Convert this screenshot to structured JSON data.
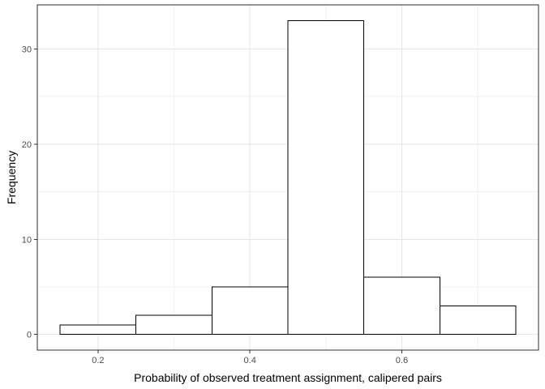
{
  "chart_data": {
    "type": "bar",
    "subtype": "histogram",
    "title": "",
    "xlabel": "Probability of observed treatment assignment, calipered pairs",
    "ylabel": "Frequency",
    "bin_edges": [
      0.15,
      0.25,
      0.35,
      0.45,
      0.55,
      0.65,
      0.75
    ],
    "counts": [
      1,
      2,
      5,
      33,
      6,
      3
    ],
    "x_axis": {
      "major_ticks": [
        0.2,
        0.4,
        0.6
      ],
      "major_tick_labels": [
        "0.2",
        "0.4",
        "0.6"
      ],
      "minor_gridlines": [
        0.3,
        0.5,
        0.7
      ]
    },
    "y_axis": {
      "major_ticks": [
        0,
        10,
        20,
        30
      ],
      "major_tick_labels": [
        "0",
        "10",
        "20",
        "30"
      ],
      "minor_gridlines": [
        5,
        15,
        25
      ]
    },
    "xlim": [
      0.12,
      0.78
    ],
    "ylim": [
      -1.65,
      34.65
    ],
    "grid": "major-and-minor",
    "legend": "none",
    "colors": {
      "figure_bg": "#ffffff",
      "panel_bg": "#ffffff",
      "panel_border": "#2e2e2e",
      "grid_major": "#e6e6e6",
      "grid_minor": "#f2f2f2",
      "bar_fill": "#ffffff",
      "bar_stroke": "#000000",
      "tick_mark": "#333333",
      "tick_label": "#4d4d4d",
      "axis_title": "#000000"
    }
  }
}
